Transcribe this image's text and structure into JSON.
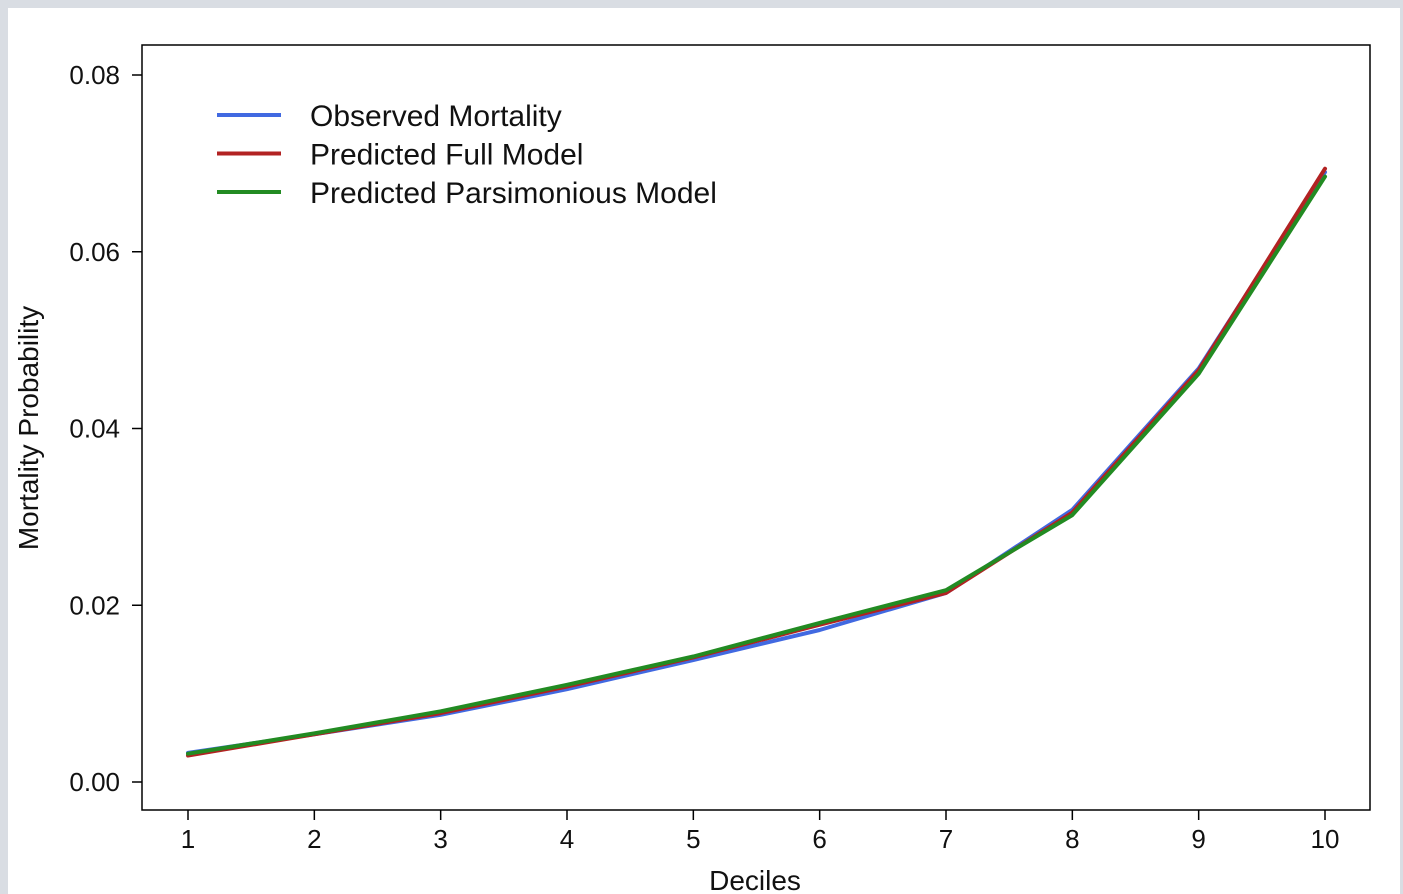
{
  "chart_data": {
    "type": "line",
    "title": "",
    "xlabel": "Deciles",
    "ylabel": "Mortality Probability",
    "xlim": [
      1,
      10
    ],
    "ylim": [
      0,
      0.08
    ],
    "x": [
      1,
      2,
      3,
      4,
      5,
      6,
      7,
      8,
      9,
      10
    ],
    "x_ticks": [
      "1",
      "2",
      "3",
      "4",
      "5",
      "6",
      "7",
      "8",
      "9",
      "10"
    ],
    "y_ticks": [
      "0.00",
      "0.02",
      "0.04",
      "0.06",
      "0.08"
    ],
    "y_tick_values": [
      0,
      0.02,
      0.04,
      0.06,
      0.08
    ],
    "grid": false,
    "legend_position": "top-left",
    "series": [
      {
        "name": "Observed Mortality",
        "color": "#4169e1",
        "values": [
          0.0033,
          0.0054,
          0.0076,
          0.0105,
          0.0138,
          0.0172,
          0.0214,
          0.0308,
          0.0468,
          0.069
        ]
      },
      {
        "name": "Predicted Full Model",
        "color": "#b22222",
        "values": [
          0.003,
          0.0054,
          0.0078,
          0.0108,
          0.0141,
          0.0178,
          0.0214,
          0.0305,
          0.0466,
          0.0694
        ]
      },
      {
        "name": "Predicted Parsimonious Model",
        "color": "#228b22",
        "values": [
          0.0032,
          0.0055,
          0.008,
          0.011,
          0.0142,
          0.018,
          0.0217,
          0.0302,
          0.0462,
          0.0685
        ]
      }
    ]
  }
}
